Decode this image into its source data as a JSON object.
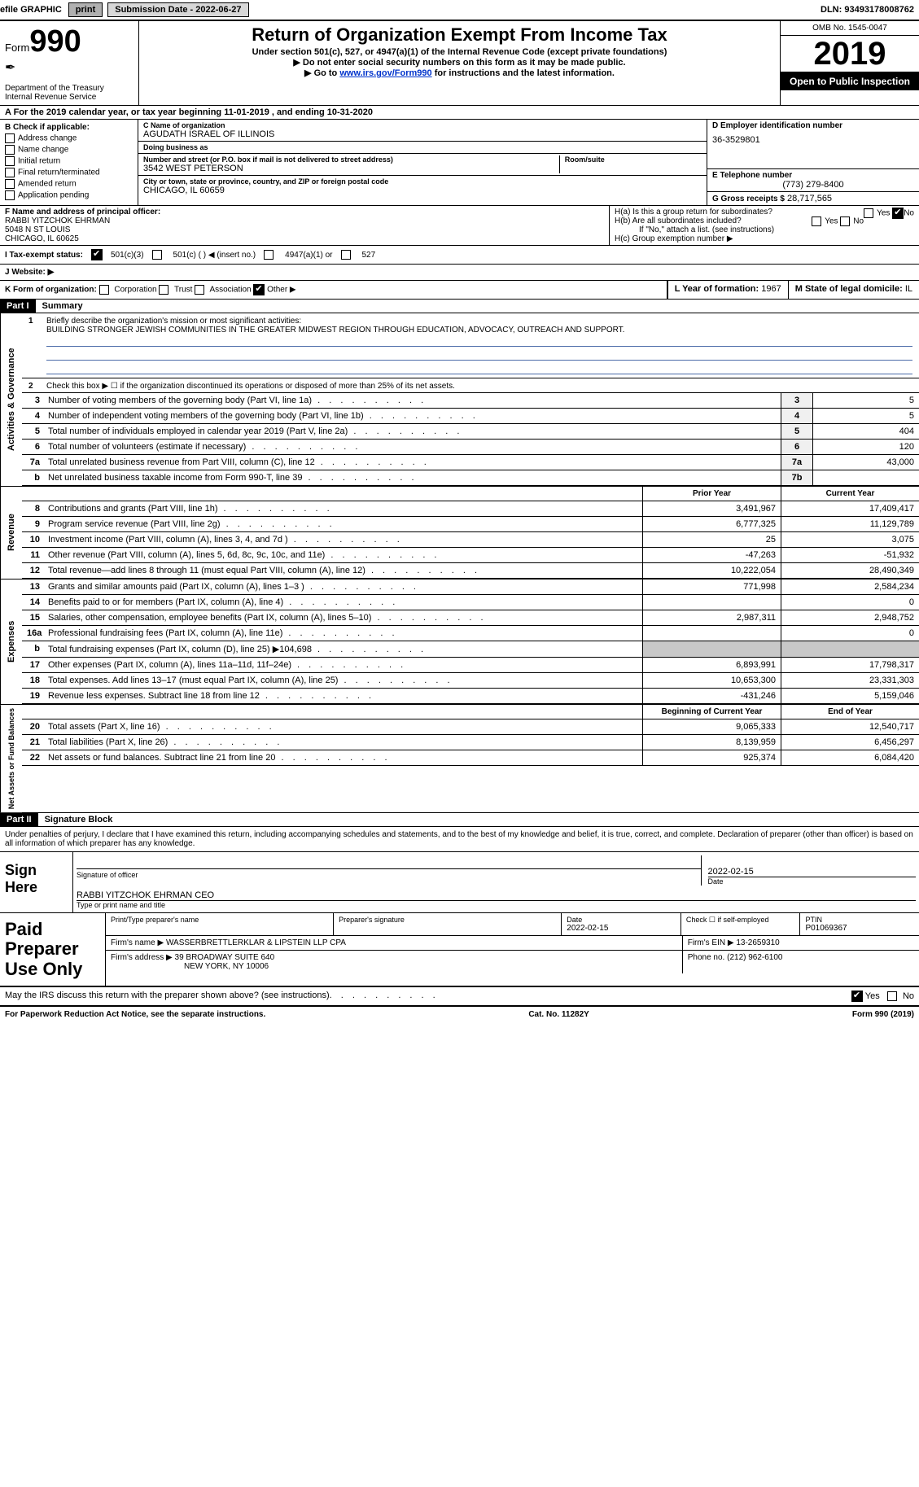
{
  "topbar": {
    "efile_label": "efile GRAPHIC",
    "print_btn": "print",
    "submission_label": "Submission Date - 2022-06-27",
    "dln": "DLN: 93493178008762"
  },
  "header": {
    "form_word": "Form",
    "form_number": "990",
    "feather_note": "",
    "dept": "Department of the Treasury\nInternal Revenue Service",
    "title": "Return of Organization Exempt From Income Tax",
    "subtitle": "Under section 501(c), 527, or 4947(a)(1) of the Internal Revenue Code (except private foundations)",
    "note1": "▶ Do not enter social security numbers on this form as it may be made public.",
    "note2_pre": "▶ Go to ",
    "note2_link": "www.irs.gov/Form990",
    "note2_post": " for instructions and the latest information.",
    "omb": "OMB No. 1545-0047",
    "year": "2019",
    "inspect": "Open to Public Inspection"
  },
  "lineA": "A For the 2019 calendar year, or tax year beginning 11-01-2019   , and ending 10-31-2020",
  "boxB": {
    "label": "B Check if applicable:",
    "opts": [
      "Address change",
      "Name change",
      "Initial return",
      "Final return/terminated",
      "Amended return",
      "Application pending"
    ]
  },
  "boxC": {
    "name_label": "C Name of organization",
    "name": "AGUDATH ISRAEL OF ILLINOIS",
    "dba_label": "Doing business as",
    "dba": "",
    "addr_label": "Number and street (or P.O. box if mail is not delivered to street address)",
    "room_label": "Room/suite",
    "addr": "3542 WEST PETERSON",
    "city_label": "City or town, state or province, country, and ZIP or foreign postal code",
    "city": "CHICAGO, IL  60659"
  },
  "boxD": {
    "label": "D Employer identification number",
    "ein": "36-3529801"
  },
  "boxE": {
    "label": "E Telephone number",
    "phone": "(773) 279-8400"
  },
  "boxG": {
    "label": "G Gross receipts $",
    "val": "28,717,565"
  },
  "boxF": {
    "label": "F  Name and address of principal officer:",
    "name": "RABBI YITZCHOK EHRMAN",
    "addr1": "5048 N ST LOUIS",
    "addr2": "CHICAGO, IL  60625"
  },
  "boxH": {
    "ha": "H(a)  Is this a group return for subordinates?",
    "hb": "H(b)  Are all subordinates included?",
    "hb_note": "If \"No,\" attach a list. (see instructions)",
    "hc": "H(c)  Group exemption number ▶",
    "yes": "Yes",
    "no": "No"
  },
  "taxI": {
    "label": "I  Tax-exempt status:",
    "o1": "501(c)(3)",
    "o2": "501(c) (  ) ◀ (insert no.)",
    "o3": "4947(a)(1) or",
    "o4": "527"
  },
  "boxJ": {
    "label": "J  Website: ▶",
    "val": ""
  },
  "boxK": {
    "label": "K Form of organization:",
    "opts": [
      "Corporation",
      "Trust",
      "Association",
      "Other ▶"
    ]
  },
  "boxL": {
    "label": "L Year of formation: ",
    "val": "1967"
  },
  "boxM": {
    "label": "M State of legal domicile: ",
    "val": "IL"
  },
  "part1": {
    "bar": "Part I",
    "title": "Summary",
    "mission_label": "Briefly describe the organization's mission or most significant activities:",
    "mission": "BUILDING STRONGER JEWISH COMMUNITIES IN THE GREATER MIDWEST REGION THROUGH EDUCATION, ADVOCACY, OUTREACH AND SUPPORT.",
    "check2": "Check this box ▶ ☐  if the organization discontinued its operations or disposed of more than 25% of its net assets.",
    "vtab_gov": "Activities & Governance",
    "vtab_rev": "Revenue",
    "vtab_exp": "Expenses",
    "vtab_net": "Net Assets or Fund Balances",
    "lines_gov": [
      {
        "n": "3",
        "t": "Number of voting members of the governing body (Part VI, line 1a)",
        "k": "3",
        "v": "5"
      },
      {
        "n": "4",
        "t": "Number of independent voting members of the governing body (Part VI, line 1b)",
        "k": "4",
        "v": "5"
      },
      {
        "n": "5",
        "t": "Total number of individuals employed in calendar year 2019 (Part V, line 2a)",
        "k": "5",
        "v": "404"
      },
      {
        "n": "6",
        "t": "Total number of volunteers (estimate if necessary)",
        "k": "6",
        "v": "120"
      },
      {
        "n": "7a",
        "t": "Total unrelated business revenue from Part VIII, column (C), line 12",
        "k": "7a",
        "v": "43,000"
      },
      {
        "n": "b",
        "t": "Net unrelated business taxable income from Form 990-T, line 39",
        "k": "7b",
        "v": ""
      }
    ],
    "head_prior": "Prior Year",
    "head_current": "Current Year",
    "lines_rev": [
      {
        "n": "8",
        "t": "Contributions and grants (Part VIII, line 1h)",
        "p": "3,491,967",
        "c": "17,409,417"
      },
      {
        "n": "9",
        "t": "Program service revenue (Part VIII, line 2g)",
        "p": "6,777,325",
        "c": "11,129,789"
      },
      {
        "n": "10",
        "t": "Investment income (Part VIII, column (A), lines 3, 4, and 7d )",
        "p": "25",
        "c": "3,075"
      },
      {
        "n": "11",
        "t": "Other revenue (Part VIII, column (A), lines 5, 6d, 8c, 9c, 10c, and 11e)",
        "p": "-47,263",
        "c": "-51,932"
      },
      {
        "n": "12",
        "t": "Total revenue—add lines 8 through 11 (must equal Part VIII, column (A), line 12)",
        "p": "10,222,054",
        "c": "28,490,349"
      }
    ],
    "lines_exp": [
      {
        "n": "13",
        "t": "Grants and similar amounts paid (Part IX, column (A), lines 1–3 )",
        "p": "771,998",
        "c": "2,584,234"
      },
      {
        "n": "14",
        "t": "Benefits paid to or for members (Part IX, column (A), line 4)",
        "p": "",
        "c": "0"
      },
      {
        "n": "15",
        "t": "Salaries, other compensation, employee benefits (Part IX, column (A), lines 5–10)",
        "p": "2,987,311",
        "c": "2,948,752"
      },
      {
        "n": "16a",
        "t": "Professional fundraising fees (Part IX, column (A), line 11e)",
        "p": "",
        "c": "0"
      },
      {
        "n": "b",
        "t": "Total fundraising expenses (Part IX, column (D), line 25) ▶104,698",
        "p": "grey",
        "c": "grey"
      },
      {
        "n": "17",
        "t": "Other expenses (Part IX, column (A), lines 11a–11d, 11f–24e)",
        "p": "6,893,991",
        "c": "17,798,317"
      },
      {
        "n": "18",
        "t": "Total expenses. Add lines 13–17 (must equal Part IX, column (A), line 25)",
        "p": "10,653,300",
        "c": "23,331,303"
      },
      {
        "n": "19",
        "t": "Revenue less expenses. Subtract line 18 from line 12",
        "p": "-431,246",
        "c": "5,159,046"
      }
    ],
    "head_begin": "Beginning of Current Year",
    "head_end": "End of Year",
    "lines_net": [
      {
        "n": "20",
        "t": "Total assets (Part X, line 16)",
        "p": "9,065,333",
        "c": "12,540,717"
      },
      {
        "n": "21",
        "t": "Total liabilities (Part X, line 26)",
        "p": "8,139,959",
        "c": "6,456,297"
      },
      {
        "n": "22",
        "t": "Net assets or fund balances. Subtract line 21 from line 20",
        "p": "925,374",
        "c": "6,084,420"
      }
    ]
  },
  "part2": {
    "bar": "Part II",
    "title": "Signature Block",
    "decl": "Under penalties of perjury, I declare that I have examined this return, including accompanying schedules and statements, and to the best of my knowledge and belief, it is true, correct, and complete. Declaration of preparer (other than officer) is based on all information of which preparer has any knowledge."
  },
  "sign": {
    "left": "Sign Here",
    "sig_label": "Signature of officer",
    "date_label": "Date",
    "date": "2022-02-15",
    "name": "RABBI YITZCHOK EHRMAN  CEO",
    "name_label": "Type or print name and title"
  },
  "prep": {
    "left": "Paid Preparer Use Only",
    "h_name": "Print/Type preparer's name",
    "h_sig": "Preparer's signature",
    "h_date": "Date",
    "date": "2022-02-15",
    "h_check": "Check ☐ if self-employed",
    "h_ptin": "PTIN",
    "ptin": "P01069367",
    "firm_label": "Firm's name    ▶",
    "firm": "WASSERBRETTLERKLAR & LIPSTEIN LLP CPA",
    "ein_label": "Firm's EIN ▶",
    "ein": "13-2659310",
    "addr_label": "Firm's address ▶",
    "addr1": "39 BROADWAY SUITE 640",
    "addr2": "NEW YORK, NY  10006",
    "phone_label": "Phone no.",
    "phone": "(212) 962-6100"
  },
  "discuss": {
    "text": "May the IRS discuss this return with the preparer shown above? (see instructions)",
    "yes": "Yes",
    "no": "No"
  },
  "footer": {
    "left": "For Paperwork Reduction Act Notice, see the separate instructions.",
    "mid": "Cat. No. 11282Y",
    "right": "Form 990 (2019)"
  }
}
